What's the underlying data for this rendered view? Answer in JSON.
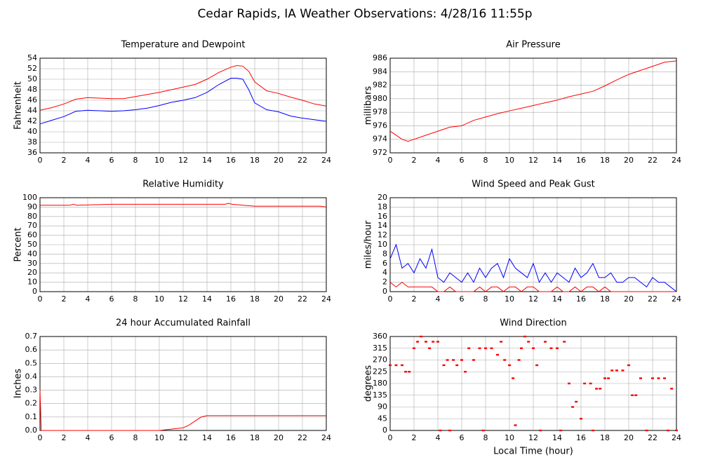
{
  "title": "Cedar Rapids, IA Weather Observations: 4/28/16 11:55p",
  "chart_data": [
    {
      "type": "line",
      "title": "Temperature and Dewpoint",
      "ylabel": "Fahrenheit",
      "x": [
        0,
        1,
        2,
        3,
        4,
        5,
        6,
        7,
        8,
        9,
        10,
        11,
        12,
        13,
        14,
        15,
        16,
        16.5,
        17,
        17.5,
        18,
        19,
        20,
        21,
        22,
        23,
        24
      ],
      "series": [
        {
          "color": "#ff0000",
          "values": [
            44.1,
            44.6,
            45.3,
            46.2,
            46.5,
            46.4,
            46.3,
            46.3,
            46.7,
            47.1,
            47.5,
            48.0,
            48.5,
            49.0,
            50.0,
            51.3,
            52.3,
            52.6,
            52.5,
            51.5,
            49.5,
            47.8,
            47.3,
            46.6,
            46.0,
            45.3,
            44.9
          ]
        },
        {
          "color": "#0000ff",
          "values": [
            41.5,
            42.2,
            42.9,
            43.9,
            44.1,
            44.0,
            43.9,
            44.0,
            44.2,
            44.5,
            45.0,
            45.6,
            46.0,
            46.5,
            47.5,
            49.0,
            50.2,
            50.2,
            50.0,
            48.0,
            45.5,
            44.2,
            43.8,
            43.0,
            42.6,
            42.3,
            42.0
          ]
        }
      ],
      "xlim": [
        0,
        24
      ],
      "xticks": [
        0,
        2,
        4,
        6,
        8,
        10,
        12,
        14,
        16,
        18,
        20,
        22,
        24
      ],
      "ylim": [
        36,
        54
      ],
      "yticks": [
        36,
        38,
        40,
        42,
        44,
        46,
        48,
        50,
        52,
        54
      ],
      "grid": true
    },
    {
      "type": "line",
      "title": "Air Pressure",
      "ylabel": "millibars",
      "x": [
        0,
        1,
        1.5,
        2,
        3,
        4,
        5,
        6,
        7,
        8,
        9,
        10,
        11,
        12,
        13,
        14,
        15,
        16,
        17,
        18,
        19,
        20,
        21,
        22,
        23,
        24
      ],
      "series": [
        {
          "color": "#ff0000",
          "values": [
            975.2,
            974.0,
            973.7,
            974.0,
            974.6,
            975.2,
            975.8,
            976.0,
            976.8,
            977.3,
            977.8,
            978.2,
            978.6,
            979.0,
            979.4,
            979.8,
            980.3,
            980.7,
            981.1,
            981.9,
            982.8,
            983.6,
            984.2,
            984.8,
            985.4,
            985.6
          ]
        }
      ],
      "xlim": [
        0,
        24
      ],
      "xticks": [
        0,
        2,
        4,
        6,
        8,
        10,
        12,
        14,
        16,
        18,
        20,
        22,
        24
      ],
      "ylim": [
        972,
        986
      ],
      "yticks": [
        972,
        974,
        976,
        978,
        980,
        982,
        984,
        986
      ],
      "grid": true
    },
    {
      "type": "line",
      "title": "Relative Humidity",
      "ylabel": "Percent",
      "x": [
        0,
        2.5,
        2.8,
        3.1,
        6,
        15.5,
        15.8,
        16.1,
        18,
        23.5,
        24
      ],
      "series": [
        {
          "color": "#ff0000",
          "values": [
            92,
            92,
            93,
            92,
            93,
            93,
            94,
            93,
            91,
            91,
            90
          ]
        }
      ],
      "xlim": [
        0,
        24
      ],
      "xticks": [
        0,
        2,
        4,
        6,
        8,
        10,
        12,
        14,
        16,
        18,
        20,
        22,
        24
      ],
      "ylim": [
        0,
        100
      ],
      "yticks": [
        0,
        10,
        20,
        30,
        40,
        50,
        60,
        70,
        80,
        90,
        100
      ],
      "grid": true
    },
    {
      "type": "line",
      "title": "Wind Speed and Peak Gust",
      "ylabel": "miles/hour",
      "x": [
        0,
        0.5,
        1,
        1.5,
        2,
        2.5,
        3,
        3.5,
        4,
        4.5,
        5,
        5.5,
        6,
        6.5,
        7,
        7.5,
        8,
        8.5,
        9,
        9.5,
        10,
        10.5,
        11,
        11.5,
        12,
        12.5,
        13,
        13.5,
        14,
        14.5,
        15,
        15.5,
        16,
        16.5,
        17,
        17.5,
        18,
        18.5,
        19,
        19.5,
        20,
        20.5,
        21,
        21.5,
        22,
        22.5,
        23,
        23.5,
        24
      ],
      "series": [
        {
          "color": "#0000ff",
          "values": [
            7,
            10,
            5,
            6,
            4,
            7,
            5,
            9,
            3,
            2,
            4,
            3,
            2,
            4,
            2,
            5,
            3,
            5,
            6,
            3,
            7,
            5,
            4,
            3,
            6,
            2,
            4,
            2,
            4,
            3,
            2,
            5,
            3,
            4,
            6,
            3,
            3,
            4,
            2,
            2,
            3,
            3,
            2,
            1,
            3,
            2,
            2,
            1,
            0
          ]
        },
        {
          "color": "#ff0000",
          "values": [
            2,
            1,
            2,
            1,
            1,
            1,
            1,
            1,
            0,
            0,
            1,
            0,
            0,
            0,
            0,
            1,
            0,
            1,
            1,
            0,
            1,
            1,
            0,
            1,
            1,
            0,
            0,
            0,
            1,
            0,
            0,
            1,
            0,
            1,
            1,
            0,
            1,
            0,
            0,
            0,
            0,
            0,
            0,
            0,
            0,
            0,
            0,
            0,
            0
          ]
        }
      ],
      "xlim": [
        0,
        24
      ],
      "xticks": [
        0,
        2,
        4,
        6,
        8,
        10,
        12,
        14,
        16,
        18,
        20,
        22,
        24
      ],
      "ylim": [
        0,
        20
      ],
      "yticks": [
        0,
        2,
        4,
        6,
        8,
        10,
        12,
        14,
        16,
        18,
        20
      ],
      "grid": true
    },
    {
      "type": "line",
      "title": "24 hour Accumulated Rainfall",
      "ylabel": "Inches",
      "x": [
        0,
        0.1,
        10,
        11,
        12,
        12.5,
        13,
        13.5,
        14,
        24
      ],
      "series": [
        {
          "color": "#ff0000",
          "values": [
            0.3,
            0,
            0,
            0.01,
            0.02,
            0.04,
            0.07,
            0.1,
            0.11,
            0.11
          ]
        }
      ],
      "xlim": [
        0,
        24
      ],
      "xticks": [
        0,
        2,
        4,
        6,
        8,
        10,
        12,
        14,
        16,
        18,
        20,
        22,
        24
      ],
      "ylim": [
        0,
        0.7
      ],
      "yticks": [
        {
          "value": 0,
          "label": "0.0"
        },
        0.1,
        0.2,
        0.3,
        0.4,
        0.5,
        0.6,
        0.7
      ],
      "grid": true
    },
    {
      "type": "scatter",
      "title": "Wind Direction",
      "ylabel": "degrees",
      "xlabel": "Local Time (hour)",
      "x": [
        0,
        0.5,
        1,
        1.3,
        1.6,
        2,
        2.3,
        2.6,
        3,
        3.3,
        3.6,
        4,
        4.2,
        4.5,
        4.8,
        5,
        5.3,
        5.6,
        6,
        6.3,
        6.6,
        7,
        7.5,
        7.8,
        8,
        8.5,
        9,
        9.3,
        9.6,
        10,
        10.3,
        10.5,
        10.8,
        11,
        11.3,
        11.6,
        12,
        12.3,
        12.6,
        13,
        13.5,
        14,
        14.3,
        14.6,
        15,
        15.3,
        15.6,
        16,
        16.3,
        16.8,
        17,
        17.3,
        17.6,
        18,
        18.3,
        18.6,
        19,
        19.5,
        20,
        20.3,
        20.6,
        21,
        21.5,
        22,
        22.5,
        23,
        23.3,
        23.6,
        24
      ],
      "series": [
        {
          "color": "#ff0000",
          "values": [
            250,
            250,
            250,
            225,
            225,
            315,
            340,
            360,
            340,
            315,
            340,
            340,
            0,
            250,
            270,
            0,
            270,
            250,
            270,
            225,
            315,
            270,
            315,
            0,
            315,
            315,
            290,
            340,
            270,
            250,
            200,
            20,
            270,
            315,
            360,
            340,
            315,
            250,
            0,
            340,
            315,
            315,
            0,
            340,
            180,
            90,
            110,
            45,
            180,
            180,
            0,
            160,
            160,
            200,
            200,
            230,
            230,
            230,
            250,
            135,
            135,
            200,
            0,
            200,
            200,
            200,
            0,
            160,
            0
          ]
        }
      ],
      "xlim": [
        0,
        24
      ],
      "xticks": [
        0,
        2,
        4,
        6,
        8,
        10,
        12,
        14,
        16,
        18,
        20,
        22,
        24
      ],
      "ylim": [
        0,
        360
      ],
      "yticks": [
        0,
        45,
        90,
        135,
        180,
        225,
        270,
        315,
        360
      ],
      "grid": true
    }
  ]
}
